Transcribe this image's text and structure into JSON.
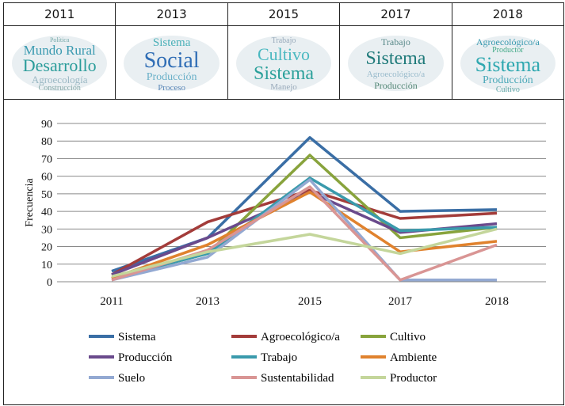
{
  "header_years": [
    "2011",
    "2013",
    "2015",
    "2017",
    "2018"
  ],
  "clouds": [
    {
      "words": [
        {
          "t": "Política",
          "s": 8,
          "c": "#7aa"
        },
        {
          "t": "Mundo Rural",
          "s": 17,
          "c": "#3a9ab0"
        },
        {
          "t": "Desarrollo",
          "s": 22,
          "c": "#2a9c9a"
        },
        {
          "t": "Agroecología",
          "s": 13,
          "c": "#9bb8c4"
        },
        {
          "t": "Construcción",
          "s": 10,
          "c": "#8aa"
        }
      ]
    },
    {
      "words": [
        {
          "t": "Sistema",
          "s": 15,
          "c": "#4ab0b8"
        },
        {
          "t": "Social",
          "s": 28,
          "c": "#2f6db5"
        },
        {
          "t": "Producción",
          "s": 14,
          "c": "#6ab0c8"
        },
        {
          "t": "Proceso",
          "s": 11,
          "c": "#5b87b8"
        }
      ]
    },
    {
      "words": [
        {
          "t": "Trabajo",
          "s": 10,
          "c": "#9ab"
        },
        {
          "t": "Cultivo",
          "s": 22,
          "c": "#4ab8c0"
        },
        {
          "t": "Sistema",
          "s": 24,
          "c": "#2aa09a"
        },
        {
          "t": "Manejo",
          "s": 11,
          "c": "#9ab"
        }
      ]
    },
    {
      "words": [
        {
          "t": "Trabajo",
          "s": 12,
          "c": "#5a8a8a"
        },
        {
          "t": "Sistema",
          "s": 24,
          "c": "#1f7a7a"
        },
        {
          "t": "Agroecológico/a",
          "s": 11,
          "c": "#9bc"
        },
        {
          "t": "Producción",
          "s": 12,
          "c": "#587"
        }
      ]
    },
    {
      "words": [
        {
          "t": "Agroecológico/a",
          "s": 12,
          "c": "#3a9ab0"
        },
        {
          "t": "Productor",
          "s": 10,
          "c": "#4a8"
        },
        {
          "t": "Sistema",
          "s": 26,
          "c": "#2fa8b0"
        },
        {
          "t": "Producción",
          "s": 14,
          "c": "#4aa8b8"
        },
        {
          "t": "Cultivo",
          "s": 10,
          "c": "#6aa"
        }
      ]
    }
  ],
  "chart_data": {
    "type": "line",
    "categories": [
      "2011",
      "2013",
      "2015",
      "2017",
      "2018"
    ],
    "ylabel": "Frecuencia",
    "ylim": [
      0,
      90
    ],
    "yticks": [
      0,
      10,
      20,
      30,
      40,
      50,
      60,
      70,
      80,
      90
    ],
    "grid": true,
    "legend": "bottom",
    "series": [
      {
        "name": "Sistema",
        "color": "#3a6ea5",
        "values": [
          6,
          25,
          82,
          40,
          41
        ]
      },
      {
        "name": "Agroecológico/a",
        "color": "#a33c3a",
        "values": [
          4,
          34,
          52,
          36,
          39
        ]
      },
      {
        "name": "Cultivo",
        "color": "#88a33c",
        "values": [
          2,
          16,
          72,
          25,
          31
        ]
      },
      {
        "name": "Producción",
        "color": "#6a4a8c",
        "values": [
          4,
          25,
          51,
          28,
          33
        ]
      },
      {
        "name": "Trabajo",
        "color": "#3a9aac",
        "values": [
          2,
          16,
          59,
          29,
          31
        ]
      },
      {
        "name": "Ambiente",
        "color": "#e0822e",
        "values": [
          2,
          21,
          51,
          17,
          23
        ]
      },
      {
        "name": "Suelo",
        "color": "#93a9d2",
        "values": [
          1,
          14,
          58,
          1,
          1
        ]
      },
      {
        "name": "Sustentabilidad",
        "color": "#d99594",
        "values": [
          1,
          18,
          54,
          1,
          21
        ]
      },
      {
        "name": "Productor",
        "color": "#c4d69b",
        "values": [
          3,
          17,
          27,
          16,
          30
        ]
      }
    ]
  }
}
